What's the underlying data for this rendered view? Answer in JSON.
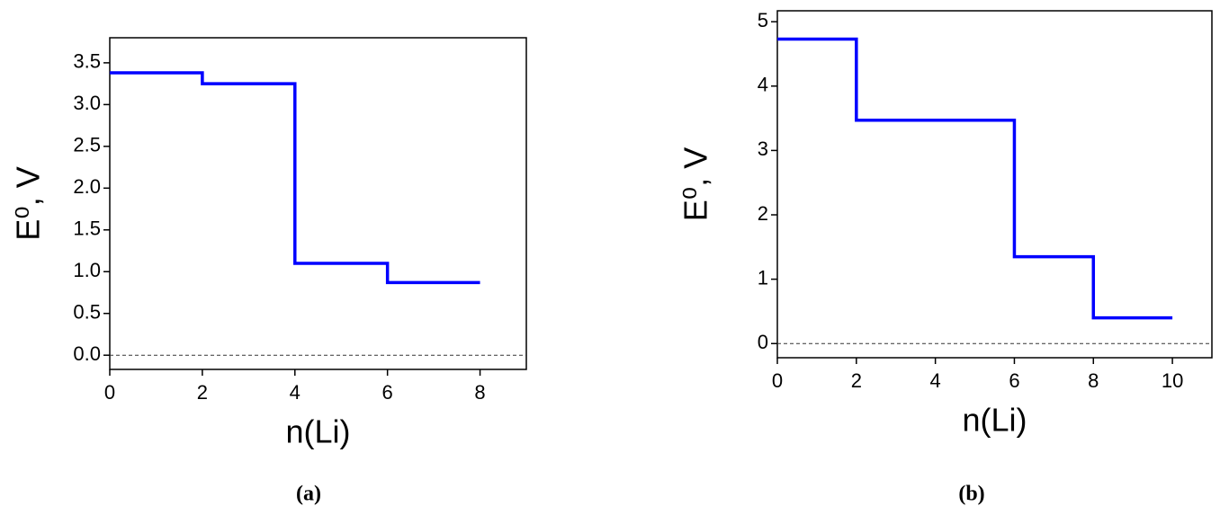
{
  "chart_data": [
    {
      "type": "step",
      "caption": "(a)",
      "xlabel": "n(Li)",
      "ylabel": "E⁰, V",
      "color": "#0000ff",
      "x": [
        0,
        2,
        4,
        6,
        8
      ],
      "values": [
        3.38,
        3.25,
        1.1,
        0.87,
        0.87
      ],
      "step": "post",
      "xlim": [
        0,
        9
      ],
      "xticks": [
        0,
        2,
        4,
        6,
        8
      ],
      "ylim": [
        -0.17,
        3.8
      ],
      "yticks": [
        {
          "value": 0,
          "label": "0.0"
        },
        {
          "value": 0.5,
          "label": "0.5"
        },
        {
          "value": 1,
          "label": "1.0"
        },
        {
          "value": 1.5,
          "label": "1.5"
        },
        {
          "value": 2,
          "label": "2.0"
        },
        {
          "value": 2.5,
          "label": "2.5"
        },
        {
          "value": 3,
          "label": "3.0"
        },
        {
          "value": 3.5,
          "label": "3.5"
        }
      ],
      "reference_line": 0
    },
    {
      "type": "step",
      "caption": "(b)",
      "xlabel": "n(Li)",
      "ylabel": "E⁰, V",
      "color": "#0000ff",
      "x": [
        0,
        2,
        6,
        8,
        10
      ],
      "values": [
        4.73,
        3.47,
        1.35,
        0.4,
        0.4
      ],
      "step": "post",
      "xlim": [
        0,
        11
      ],
      "xticks": [
        0,
        2,
        4,
        6,
        8,
        10
      ],
      "ylim": [
        -0.22,
        5.17
      ],
      "yticks": [
        0,
        1,
        2,
        3,
        4,
        5
      ],
      "reference_line": 0
    }
  ]
}
